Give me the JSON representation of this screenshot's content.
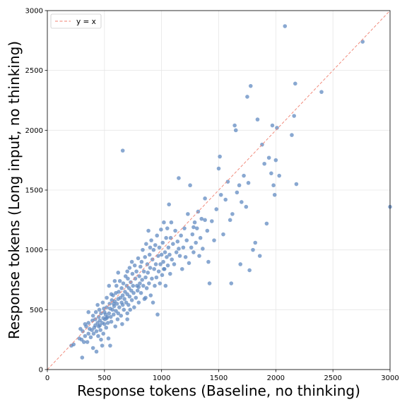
{
  "chart_data": {
    "type": "scatter",
    "xlabel": "Response tokens (Baseline, no thinking)",
    "ylabel": "Response tokens (Long input, no thinking)",
    "xlim": [
      0,
      3000
    ],
    "ylim": [
      0,
      3000
    ],
    "xticks": [
      0,
      500,
      1000,
      1500,
      2000,
      2500,
      3000
    ],
    "yticks": [
      0,
      500,
      1000,
      1500,
      2000,
      2500,
      3000
    ],
    "grid": true,
    "legend_position": "top-left",
    "reference_line": {
      "label": "y = x",
      "color": "#f08070",
      "style": "dashed"
    },
    "point_color": "#5b86bf",
    "series": [
      {
        "values": [
          [
            210,
            200
          ],
          [
            230,
            210
          ],
          [
            280,
            260
          ],
          [
            290,
            340
          ],
          [
            300,
            250
          ],
          [
            305,
            100
          ],
          [
            310,
            320
          ],
          [
            320,
            230
          ],
          [
            330,
            280
          ],
          [
            340,
            360
          ],
          [
            350,
            230
          ],
          [
            360,
            300
          ],
          [
            360,
            390
          ],
          [
            370,
            340
          ],
          [
            380,
            270
          ],
          [
            390,
            330
          ],
          [
            395,
            410
          ],
          [
            400,
            180
          ],
          [
            400,
            450
          ],
          [
            405,
            300
          ],
          [
            410,
            350
          ],
          [
            420,
            420
          ],
          [
            420,
            370
          ],
          [
            425,
            480
          ],
          [
            430,
            320
          ],
          [
            430,
            150
          ],
          [
            440,
            390
          ],
          [
            445,
            280
          ],
          [
            450,
            360
          ],
          [
            450,
            440
          ],
          [
            455,
            500
          ],
          [
            460,
            410
          ],
          [
            465,
            330
          ],
          [
            470,
            470
          ],
          [
            470,
            250
          ],
          [
            480,
            390
          ],
          [
            485,
            560
          ],
          [
            490,
            430
          ],
          [
            490,
            300
          ],
          [
            495,
            510
          ],
          [
            500,
            480
          ],
          [
            500,
            380
          ],
          [
            505,
            420
          ],
          [
            510,
            460
          ],
          [
            515,
            350
          ],
          [
            520,
            520
          ],
          [
            520,
            600
          ],
          [
            525,
            440
          ],
          [
            530,
            390
          ],
          [
            535,
            260
          ],
          [
            540,
            470
          ],
          [
            545,
            550
          ],
          [
            550,
            510
          ],
          [
            550,
            200
          ],
          [
            555,
            440
          ],
          [
            560,
            400
          ],
          [
            565,
            580
          ],
          [
            570,
            500
          ],
          [
            575,
            620
          ],
          [
            580,
            460
          ],
          [
            585,
            530
          ],
          [
            590,
            570
          ],
          [
            595,
            360
          ],
          [
            600,
            640
          ],
          [
            600,
            490
          ],
          [
            605,
            700
          ],
          [
            610,
            550
          ],
          [
            615,
            420
          ],
          [
            620,
            590
          ],
          [
            620,
            470
          ],
          [
            625,
            650
          ],
          [
            630,
            520
          ],
          [
            635,
            740
          ],
          [
            640,
            600
          ],
          [
            645,
            450
          ],
          [
            650,
            680
          ],
          [
            650,
            560
          ],
          [
            655,
            380
          ],
          [
            660,
            1830
          ],
          [
            660,
            620
          ],
          [
            665,
            720
          ],
          [
            670,
            500
          ],
          [
            675,
            590
          ],
          [
            680,
            650
          ],
          [
            685,
            780
          ],
          [
            690,
            560
          ],
          [
            695,
            700
          ],
          [
            700,
            630
          ],
          [
            700,
            420
          ],
          [
            705,
            760
          ],
          [
            710,
            540
          ],
          [
            715,
            680
          ],
          [
            720,
            850
          ],
          [
            720,
            610
          ],
          [
            725,
            500
          ],
          [
            730,
            730
          ],
          [
            735,
            660
          ],
          [
            740,
            580
          ],
          [
            745,
            800
          ],
          [
            750,
            700
          ],
          [
            755,
            640
          ],
          [
            760,
            520
          ],
          [
            765,
            870
          ],
          [
            770,
            760
          ],
          [
            775,
            600
          ],
          [
            780,
            820
          ],
          [
            785,
            700
          ],
          [
            790,
            660
          ],
          [
            795,
            930
          ],
          [
            800,
            560
          ],
          [
            805,
            780
          ],
          [
            810,
            720
          ],
          [
            815,
            860
          ],
          [
            820,
            640
          ],
          [
            825,
            900
          ],
          [
            830,
            750
          ],
          [
            835,
            1000
          ],
          [
            840,
            700
          ],
          [
            845,
            820
          ],
          [
            850,
            590
          ],
          [
            855,
            940
          ],
          [
            860,
            770
          ],
          [
            865,
            1050
          ],
          [
            870,
            680
          ],
          [
            875,
            880
          ],
          [
            880,
            810
          ],
          [
            885,
            1160
          ],
          [
            890,
            720
          ],
          [
            895,
            960
          ],
          [
            900,
            850
          ],
          [
            905,
            620
          ],
          [
            910,
            1080
          ],
          [
            915,
            760
          ],
          [
            920,
            920
          ],
          [
            925,
            560
          ],
          [
            930,
            1000
          ],
          [
            935,
            840
          ],
          [
            940,
            700
          ],
          [
            945,
            1040
          ],
          [
            950,
            880
          ],
          [
            955,
            770
          ],
          [
            960,
            1120
          ],
          [
            965,
            460
          ],
          [
            970,
            950
          ],
          [
            975,
            820
          ],
          [
            980,
            1020
          ],
          [
            985,
            720
          ],
          [
            990,
            880
          ],
          [
            995,
            1170
          ],
          [
            1000,
            960
          ],
          [
            1005,
            790
          ],
          [
            1010,
            1060
          ],
          [
            1015,
            900
          ],
          [
            1020,
            1230
          ],
          [
            1025,
            840
          ],
          [
            1030,
            980
          ],
          [
            1035,
            700
          ],
          [
            1040,
            1100
          ],
          [
            1045,
            940
          ],
          [
            1050,
            1180
          ],
          [
            1055,
            870
          ],
          [
            1060,
            1020
          ],
          [
            1065,
            1380
          ],
          [
            1070,
            960
          ],
          [
            1075,
            800
          ],
          [
            1080,
            1100
          ],
          [
            1085,
            1230
          ],
          [
            1090,
            920
          ],
          [
            1100,
            1050
          ],
          [
            1110,
            880
          ],
          [
            1120,
            1160
          ],
          [
            1130,
            980
          ],
          [
            1140,
            1070
          ],
          [
            1150,
            1600
          ],
          [
            1160,
            950
          ],
          [
            1170,
            1120
          ],
          [
            1180,
            840
          ],
          [
            1190,
            1020
          ],
          [
            1200,
            1180
          ],
          [
            1210,
            940
          ],
          [
            1220,
            1080
          ],
          [
            1230,
            1300
          ],
          [
            1240,
            890
          ],
          [
            1250,
            1540
          ],
          [
            1260,
            1020
          ],
          [
            1270,
            1130
          ],
          [
            1280,
            980
          ],
          [
            1290,
            1230
          ],
          [
            1300,
            1060
          ],
          [
            1310,
            1180
          ],
          [
            1320,
            1320
          ],
          [
            1330,
            950
          ],
          [
            1340,
            1100
          ],
          [
            1350,
            1260
          ],
          [
            1360,
            1010
          ],
          [
            1380,
            1430
          ],
          [
            1400,
            1160
          ],
          [
            1410,
            900
          ],
          [
            1420,
            720
          ],
          [
            1440,
            1240
          ],
          [
            1460,
            1080
          ],
          [
            1480,
            1340
          ],
          [
            1500,
            1680
          ],
          [
            1510,
            1780
          ],
          [
            1520,
            1460
          ],
          [
            1540,
            1130
          ],
          [
            1560,
            1420
          ],
          [
            1580,
            1570
          ],
          [
            1600,
            1250
          ],
          [
            1610,
            720
          ],
          [
            1620,
            1300
          ],
          [
            1640,
            2040
          ],
          [
            1650,
            2000
          ],
          [
            1660,
            1480
          ],
          [
            1680,
            1540
          ],
          [
            1690,
            880
          ],
          [
            1700,
            1400
          ],
          [
            1720,
            1620
          ],
          [
            1740,
            1360
          ],
          [
            1750,
            2280
          ],
          [
            1760,
            1560
          ],
          [
            1770,
            830
          ],
          [
            1780,
            2370
          ],
          [
            1800,
            1000
          ],
          [
            1820,
            1060
          ],
          [
            1840,
            2090
          ],
          [
            1860,
            950
          ],
          [
            1880,
            1880
          ],
          [
            1900,
            1720
          ],
          [
            1920,
            1220
          ],
          [
            1940,
            1770
          ],
          [
            1960,
            1640
          ],
          [
            1970,
            2040
          ],
          [
            1980,
            1540
          ],
          [
            1990,
            1460
          ],
          [
            2000,
            1750
          ],
          [
            2010,
            2020
          ],
          [
            2030,
            1620
          ],
          [
            2080,
            2870
          ],
          [
            2140,
            1960
          ],
          [
            2160,
            2120
          ],
          [
            2170,
            2390
          ],
          [
            2180,
            1550
          ],
          [
            2400,
            2320
          ],
          [
            2760,
            2740
          ],
          [
            3000,
            1360
          ],
          [
            560,
            630
          ],
          [
            620,
            810
          ],
          [
            700,
            820
          ],
          [
            580,
            550
          ],
          [
            540,
            700
          ],
          [
            660,
            540
          ],
          [
            740,
            900
          ],
          [
            900,
            1020
          ],
          [
            1020,
            840
          ],
          [
            1150,
            1010
          ],
          [
            1280,
            1190
          ],
          [
            1380,
            1250
          ],
          [
            480,
            200
          ],
          [
            330,
            380
          ],
          [
            360,
            480
          ],
          [
            590,
            740
          ],
          [
            520,
            430
          ],
          [
            460,
            370
          ],
          [
            440,
            540
          ],
          [
            700,
            470
          ],
          [
            800,
            690
          ],
          [
            860,
            600
          ]
        ]
      }
    ]
  }
}
